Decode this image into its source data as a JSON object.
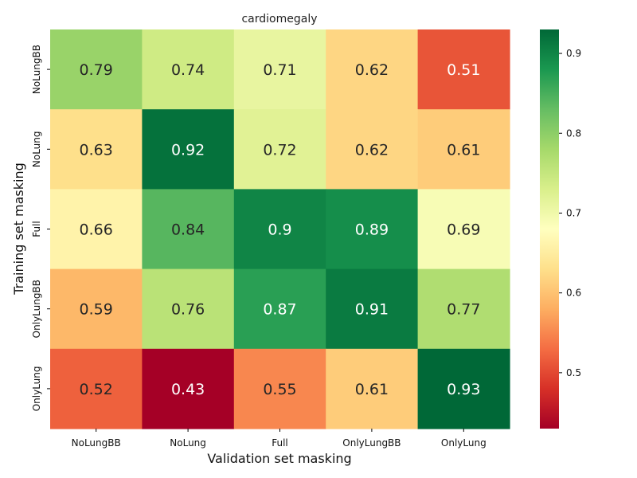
{
  "chart_data": {
    "type": "heatmap",
    "title": "cardiomegaly",
    "xlabel": "Validation set masking",
    "ylabel": "Training set masking",
    "x_categories": [
      "NoLungBB",
      "NoLung",
      "Full",
      "OnlyLungBB",
      "OnlyLung"
    ],
    "y_categories": [
      "NoLungBB",
      "NoLung",
      "Full",
      "OnlyLungBB",
      "OnlyLung"
    ],
    "values": [
      [
        0.79,
        0.74,
        0.71,
        0.62,
        0.51
      ],
      [
        0.63,
        0.92,
        0.72,
        0.62,
        0.61
      ],
      [
        0.66,
        0.84,
        0.9,
        0.89,
        0.69
      ],
      [
        0.59,
        0.76,
        0.87,
        0.91,
        0.77
      ],
      [
        0.52,
        0.43,
        0.55,
        0.61,
        0.93
      ]
    ],
    "value_labels": [
      [
        "0.79",
        "0.74",
        "0.71",
        "0.62",
        "0.51"
      ],
      [
        "0.63",
        "0.92",
        "0.72",
        "0.62",
        "0.61"
      ],
      [
        "0.66",
        "0.84",
        "0.9",
        "0.89",
        "0.69"
      ],
      [
        "0.59",
        "0.76",
        "0.87",
        "0.91",
        "0.77"
      ],
      [
        "0.52",
        "0.43",
        "0.55",
        "0.61",
        "0.93"
      ]
    ],
    "colormap": "RdYlGn",
    "color_range": [
      0.43,
      0.93
    ],
    "colorbar_ticks": [
      "0.5",
      "0.6",
      "0.7",
      "0.8",
      "0.9"
    ],
    "colorbar_tick_values": [
      0.5,
      0.6,
      0.7,
      0.8,
      0.9
    ],
    "colorbar_position": "right",
    "grid": false
  }
}
